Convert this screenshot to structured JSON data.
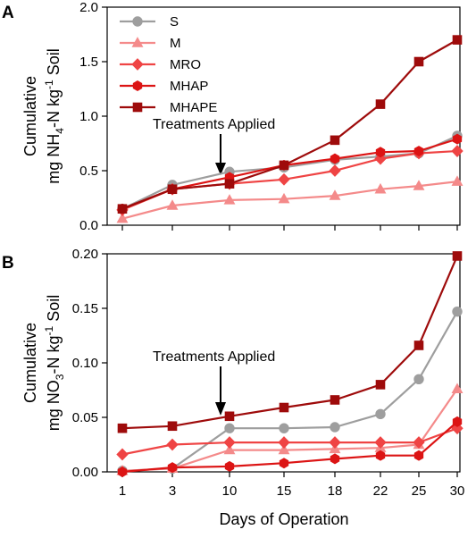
{
  "chart_data": [
    {
      "type": "line",
      "panel": "A",
      "ylabel_line1": "Cumulative",
      "ylabel_prefix": "mg NH",
      "ylabel_sub1": "4",
      "ylabel_mid": "-N kg",
      "ylabel_sup": "-1",
      "ylabel_suffix": " Soil",
      "xlabel": "",
      "ylim": [
        0,
        2.0
      ],
      "yticks": [
        0.0,
        0.5,
        1.0,
        1.5,
        2.0
      ],
      "ytick_labels": [
        "0.0",
        "0.5",
        "1.0",
        "1.5",
        "2.0"
      ],
      "x_labels": [
        "1",
        "3",
        "10",
        "15",
        "18",
        "22",
        "25",
        "30"
      ],
      "annotation": "Treatments Applied",
      "legend_position": "top-left",
      "series": [
        {
          "name": "S",
          "marker": "circle",
          "color": "#9e9e9e",
          "values": [
            0.15,
            0.37,
            0.49,
            0.53,
            0.6,
            0.63,
            0.66,
            0.82
          ]
        },
        {
          "name": "M",
          "marker": "triangle",
          "color": "#f48a8a",
          "values": [
            0.06,
            0.18,
            0.23,
            0.24,
            0.27,
            0.33,
            0.36,
            0.4
          ]
        },
        {
          "name": "MRO",
          "marker": "diamond",
          "color": "#ef4444",
          "values": [
            0.14,
            0.33,
            0.38,
            0.42,
            0.5,
            0.61,
            0.66,
            0.68
          ]
        },
        {
          "name": "MHAP",
          "marker": "hexagon",
          "color": "#dc1414",
          "values": [
            0.15,
            0.33,
            0.44,
            0.55,
            0.61,
            0.67,
            0.68,
            0.79
          ]
        },
        {
          "name": "MHAPE",
          "marker": "square",
          "color": "#9e0b0b",
          "values": [
            0.15,
            0.33,
            0.38,
            0.55,
            0.78,
            1.11,
            1.5,
            1.7
          ]
        }
      ]
    },
    {
      "type": "line",
      "panel": "B",
      "ylabel_line1": "Cumulative",
      "ylabel_prefix": "mg NO",
      "ylabel_sub1": "3",
      "ylabel_mid": "-N kg",
      "ylabel_sup": "-1",
      "ylabel_suffix": " Soil",
      "xlabel": "Days of Operation",
      "ylim": [
        0,
        0.2
      ],
      "yticks": [
        0.0,
        0.05,
        0.1,
        0.15,
        0.2
      ],
      "ytick_labels": [
        "0.00",
        "0.05",
        "0.10",
        "0.15",
        "0.20"
      ],
      "x_labels": [
        "1",
        "3",
        "10",
        "15",
        "18",
        "22",
        "25",
        "30"
      ],
      "annotation": "Treatments Applied",
      "series": [
        {
          "name": "S",
          "marker": "circle",
          "color": "#9e9e9e",
          "values": [
            0.001,
            0.003,
            0.04,
            0.04,
            0.041,
            0.053,
            0.085,
            0.147
          ]
        },
        {
          "name": "M",
          "marker": "triangle",
          "color": "#f48a8a",
          "values": [
            0.001,
            0.003,
            0.02,
            0.02,
            0.021,
            0.022,
            0.025,
            0.076
          ]
        },
        {
          "name": "MRO",
          "marker": "diamond",
          "color": "#ef4444",
          "values": [
            0.016,
            0.025,
            0.027,
            0.027,
            0.027,
            0.027,
            0.027,
            0.04
          ]
        },
        {
          "name": "MHAP",
          "marker": "hexagon",
          "color": "#dc1414",
          "values": [
            0.0,
            0.004,
            0.005,
            0.008,
            0.012,
            0.015,
            0.015,
            0.046
          ]
        },
        {
          "name": "MHAPE",
          "marker": "square",
          "color": "#9e0b0b",
          "values": [
            0.04,
            0.042,
            0.051,
            0.059,
            0.066,
            0.08,
            0.116,
            0.198
          ]
        }
      ]
    }
  ]
}
